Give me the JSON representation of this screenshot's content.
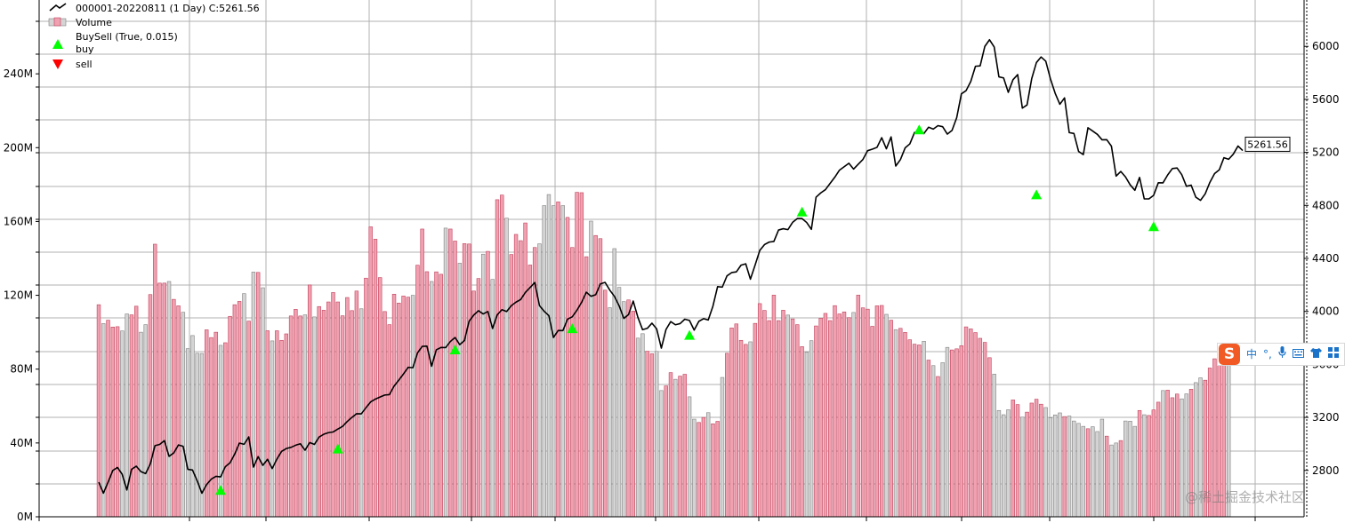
{
  "chart_data": {
    "type": "line",
    "legend": {
      "placement": "top-left",
      "entries": [
        {
          "label": "000001-20220811 (1 Day) C:5261.56",
          "marker": "line",
          "color": "#000000"
        },
        {
          "label": "Volume",
          "marker": "bar",
          "color": "#f0a0b0"
        },
        {
          "label": "BuySell (True, 0.015)",
          "marker": "none",
          "color": "#00ff00"
        },
        {
          "label": "buy",
          "marker": "triangle-up",
          "color": "#00ff00"
        },
        {
          "label": "sell",
          "marker": "triangle-down",
          "color": "#ff0000"
        }
      ]
    },
    "price_axis": {
      "side": "right",
      "ylim": [
        2450,
        6350
      ],
      "ticks": [
        2800,
        3200,
        3600,
        4000,
        4400,
        4800,
        5200,
        5600,
        6000
      ]
    },
    "volume_axis": {
      "side": "left",
      "unit": "M",
      "ylim": [
        0,
        280
      ],
      "ticks": [
        0,
        40,
        80,
        120,
        160,
        200,
        240
      ],
      "tick_labels": [
        "0M",
        "40M",
        "80M",
        "120M",
        "160M",
        "200M",
        "240M"
      ]
    },
    "last_value_label": "5261.56",
    "grid": true,
    "close_series": {
      "name": "000001-20220811 (1 Day) C:5261.56",
      "values": [
        2711,
        2628,
        2712,
        2800,
        2822,
        2771,
        2652,
        2808,
        2832,
        2791,
        2776,
        2849,
        2987,
        2996,
        3025,
        2906,
        2932,
        2992,
        2982,
        2808,
        2803,
        2721,
        2628,
        2693,
        2734,
        2755,
        2751,
        2828,
        2857,
        2923,
        3006,
        2997,
        3053,
        2825,
        2904,
        2838,
        2884,
        2814,
        2885,
        2944,
        2965,
        2974,
        2990,
        3001,
        2952,
        3010,
        2996,
        3052,
        3073,
        3085,
        3090,
        3112,
        3132,
        3169,
        3200,
        3228,
        3227,
        3273,
        3317,
        3338,
        3354,
        3369,
        3372,
        3437,
        3481,
        3528,
        3578,
        3575,
        3687,
        3736,
        3738,
        3586,
        3710,
        3728,
        3727,
        3773,
        3803,
        3749,
        3780,
        3926,
        3973,
        4005,
        3981,
        3999,
        3871,
        3974,
        4013,
        3999,
        4043,
        4070,
        4090,
        4143,
        4180,
        4218,
        4044,
        4001,
        3968,
        3803,
        3856,
        3855,
        3942,
        3959,
        4009,
        4069,
        4145,
        4114,
        4126,
        4207,
        4219,
        4161,
        4113,
        4042,
        3947,
        3976,
        4078,
        3955,
        3862,
        3872,
        3911,
        3868,
        3723,
        3864,
        3923,
        3899,
        3908,
        3941,
        3932,
        3859,
        3925,
        3945,
        3935,
        4039,
        4187,
        4183,
        4268,
        4293,
        4298,
        4349,
        4359,
        4243,
        4350,
        4460,
        4504,
        4523,
        4528,
        4614,
        4624,
        4617,
        4672,
        4701,
        4701,
        4671,
        4619,
        4862,
        4894,
        4919,
        4966,
        5013,
        5066,
        5092,
        5118,
        5074,
        5111,
        5147,
        5213,
        5224,
        5238,
        5311,
        5227,
        5317,
        5097,
        5146,
        5234,
        5264,
        5350,
        5351,
        5342,
        5390,
        5376,
        5402,
        5394,
        5338,
        5366,
        5462,
        5642,
        5666,
        5735,
        5850,
        5853,
        6000,
        6050,
        5995,
        5770,
        5762,
        5653,
        5748,
        5787,
        5534,
        5558,
        5757,
        5878,
        5920,
        5888,
        5754,
        5646,
        5563,
        5611,
        5349,
        5343,
        5207,
        5183,
        5386,
        5361,
        5336,
        5295,
        5296,
        5247,
        5021,
        5056,
        5015,
        4955,
        4914,
        5011,
        4849,
        4849,
        4876,
        4971,
        4970,
        5030,
        5078,
        5082,
        5032,
        4944,
        4953,
        4862,
        4838,
        4887,
        4974,
        5040,
        5068,
        5160,
        5148,
        5187,
        5248,
        5214
      ],
      "last_value": 5261.56
    },
    "buy_signals": [
      {
        "index": 26,
        "price": 2650
      },
      {
        "index": 51,
        "price": 2962
      },
      {
        "index": 76,
        "price": 3710
      },
      {
        "index": 101,
        "price": 3870
      },
      {
        "index": 126,
        "price": 3820
      },
      {
        "index": 150,
        "price": 4750
      },
      {
        "index": 175,
        "price": 5370
      },
      {
        "index": 200,
        "price": 4880
      },
      {
        "index": 225,
        "price": 4640
      }
    ],
    "volume_series": {
      "name": "Volume",
      "unit": "M",
      "values": [
        114.9,
        104.7,
        106.5,
        102.8,
        103.0,
        100.7,
        109.9,
        109.4,
        114.1,
        100.0,
        104.1,
        120.4,
        147.7,
        126.6,
        126.6,
        127.5,
        117.8,
        114.3,
        110.8,
        91.1,
        98.2,
        88.6,
        88.5,
        101.3,
        97.1,
        100.0,
        92.9,
        94.3,
        108.6,
        114.9,
        116.7,
        120.9,
        106.0,
        132.6,
        132.4,
        124.1,
        100.8,
        95.3,
        100.8,
        95.6,
        99.1,
        108.8,
        112.4,
        108.8,
        109.4,
        125.6,
        108.3,
        113.9,
        111.9,
        116.4,
        121.5,
        116.4,
        108.9,
        118.8,
        111.7,
        122.3,
        112.7,
        129.3,
        157.1,
        150.4,
        129.6,
        111.2,
        104.1,
        120.6,
        115.8,
        119.6,
        119.0,
        120.0,
        136.3,
        155.9,
        132.8,
        127.5,
        132.7,
        131.4,
        156.4,
        155.9,
        149.4,
        137.4,
        148.0,
        147.8,
        122.3,
        129.1,
        142.3,
        143.8,
        128.6,
        171.8,
        174.3,
        161.8,
        142.1,
        153.0,
        149.6,
        159.2,
        136.4,
        145.9,
        147.9,
        168.6,
        174.6,
        168.6,
        170.6,
        168.6,
        162.2,
        145.9,
        175.8,
        175.6,
        140.9,
        160.2,
        152.4,
        150.7,
        122.8,
        113.3,
        145.3,
        124.3,
        116.6,
        117.5,
        111.4,
        96.8,
        99.2,
        89.7,
        88.3,
        89.6,
        68.4,
        70.9,
        78.1,
        74.5,
        76.2,
        77.2,
        65.0,
        52.9,
        51.1,
        53.8,
        56.4,
        50.4,
        51.7,
        75.5,
        88.6,
        102.3,
        104.5,
        95.6,
        93.4,
        94.8,
        104.8,
        115.5,
        111.8,
        106.3,
        120.1,
        106.3,
        111.9,
        109.3,
        107.2,
        104.1,
        92.2,
        89.1,
        95.4,
        103.4,
        107.6,
        110.2,
        106.3,
        114.4,
        109.9,
        111.0,
        107.9,
        110.7,
        120.1,
        113.2,
        112.5,
        103.2,
        114.3,
        114.5,
        109.7,
        106.5,
        101.4,
        102.1,
        99.9,
        95.9,
        93.5,
        93.1,
        95.1,
        84.9,
        81.9,
        76.0,
        83.5,
        91.8,
        90.4,
        91.0,
        92.7,
        102.9,
        101.8,
        99.8,
        96.7,
        94.5,
        86.2,
        77.3,
        57.6,
        55.3,
        58.0,
        63.3,
        60.8,
        54.0,
        56.7,
        61.6,
        63.7,
        61.0,
        59.2,
        53.6,
        55.2,
        56.3,
        54.3,
        54.6,
        51.9,
        50.6,
        49.0,
        47.7,
        48.8,
        46.2,
        52.9,
        43.7,
        38.9,
        40.0,
        41.3,
        51.9,
        51.8,
        49.0,
        57.6,
        55.3,
        54.9,
        57.9,
        62.1,
        68.4,
        68.6,
        64.5,
        66.5,
        63.9,
        66.6,
        69.1,
        72.7,
        75.3,
        74.0,
        80.6,
        85.6,
        84.6,
        88.0,
        89.8
      ],
      "up_color": "#f0a0b0",
      "down_color": "#d4d4d4"
    },
    "x_tick_labels": [
      "",
      "",
      "",
      "",
      "",
      "",
      "",
      "",
      "",
      "",
      "",
      "",
      ""
    ]
  },
  "overlay": {
    "ime_toolbar": {
      "logo": "S",
      "mode_label": "中",
      "punct_label": "°,",
      "mic_icon": "mic-icon",
      "keyboard_icon": "keyboard-icon",
      "skin_icon": "shirt-icon",
      "tools_icon": "toolbox-icon"
    },
    "watermark": "@稀土掘金技术社区"
  }
}
